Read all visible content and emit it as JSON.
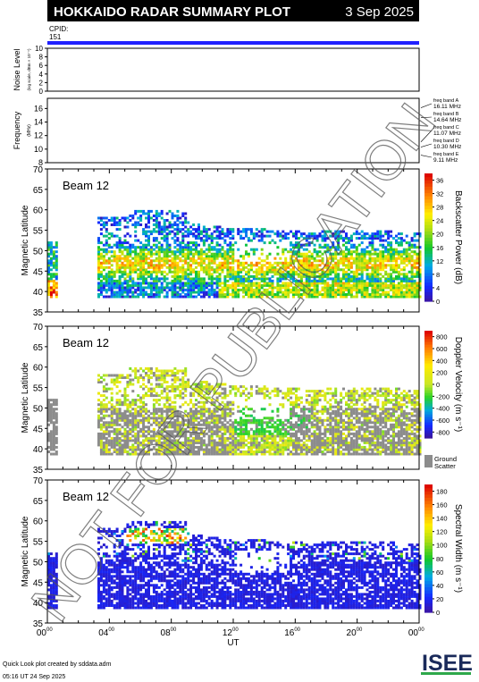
{
  "header": {
    "title": "HOKKAIDO RADAR SUMMARY PLOT",
    "date": "3 Sep 2025",
    "cpid_label": "CPID:",
    "cpid_value": "151"
  },
  "watermark": "NOT FOR PUBLICATION",
  "footer": {
    "line1": "Quick Look plot created by sddata.adm",
    "line2": "05:16 UT 24 Sep 2025",
    "logo_text": "ISEE"
  },
  "colors": {
    "header_bg": "#000000",
    "cpid_bar": "#2020ff",
    "ground_scatter": "#8c8c8c"
  },
  "chart_data": [
    {
      "type": "area",
      "name": "noise",
      "ylabel": "Noise Level",
      "ylabel_sub": "(log scale, dBm × 10⁻⁴)",
      "ylim": [
        0,
        10
      ],
      "yticks": [
        "10",
        "8",
        "6",
        "4",
        "2",
        "0"
      ]
    },
    {
      "type": "line",
      "name": "frequency",
      "ylabel": "Frequency",
      "ylabel_sub": "(MHz)",
      "ylim": [
        8,
        17.5
      ],
      "yticks": [
        "16",
        "14",
        "12",
        "10",
        "8"
      ],
      "freq_bands": [
        {
          "label": "freq band A",
          "value_label": "16.11 MHz",
          "mhz": 16.11
        },
        {
          "label": "freq band B",
          "value_label": "14.64 MHz",
          "mhz": 14.64
        },
        {
          "label": "freq band C",
          "value_label": "11.07 MHz",
          "mhz": 11.07
        },
        {
          "label": "freq band D",
          "value_label": "10.30 MHz",
          "mhz": 10.3
        },
        {
          "label": "freq band E",
          "value_label": "9.11 MHz",
          "mhz": 9.11
        }
      ],
      "spike_hour": 7.5
    },
    {
      "type": "heatmap",
      "name": "power",
      "beam_label": "Beam 12",
      "ylabel": "Magnetic Latitude",
      "ylim": [
        35,
        70
      ],
      "yticks": [
        "70",
        "65",
        "60",
        "55",
        "50",
        "45",
        "40",
        "35"
      ],
      "colorbar_label": "Backscatter Power (dB)",
      "colorbar_ticks": [
        "36",
        "32",
        "28",
        "24",
        "20",
        "16",
        "12",
        "8",
        "4",
        "0"
      ],
      "colorbar_range": [
        0,
        38
      ]
    },
    {
      "type": "heatmap",
      "name": "velocity",
      "beam_label": "Beam 12",
      "ylabel": "Magnetic Latitude",
      "ylim": [
        35,
        70
      ],
      "yticks": [
        "70",
        "65",
        "60",
        "55",
        "50",
        "45",
        "40",
        "35"
      ],
      "colorbar_label": "Doppler Velocity (m s⁻¹)",
      "colorbar_ticks": [
        "800",
        "600",
        "400",
        "200",
        "0",
        "-200",
        "-400",
        "-600",
        "-800"
      ],
      "colorbar_range": [
        -900,
        900
      ],
      "ground_label_1": "Ground",
      "ground_label_2": "Scatter"
    },
    {
      "type": "heatmap",
      "name": "width",
      "beam_label": "Beam 12",
      "ylabel": "Magnetic Latitude",
      "ylim": [
        35,
        70
      ],
      "yticks": [
        "70",
        "65",
        "60",
        "55",
        "50",
        "45",
        "40",
        "35"
      ],
      "colorbar_label": "Spectral Width (m s⁻¹)",
      "colorbar_ticks": [
        "180",
        "160",
        "140",
        "120",
        "100",
        "80",
        "60",
        "40",
        "20",
        "0"
      ],
      "colorbar_range": [
        0,
        190
      ],
      "xlabel": "UT",
      "xticks": [
        {
          "hour": 0,
          "h": "00",
          "m": "00"
        },
        {
          "hour": 4,
          "h": "04",
          "m": "00"
        },
        {
          "hour": 8,
          "h": "08",
          "m": "00"
        },
        {
          "hour": 12,
          "h": "12",
          "m": "00"
        },
        {
          "hour": 16,
          "h": "16",
          "m": "00"
        },
        {
          "hour": 20,
          "h": "20",
          "m": "00"
        },
        {
          "hour": 24,
          "h": "00",
          "m": "00"
        }
      ]
    }
  ]
}
